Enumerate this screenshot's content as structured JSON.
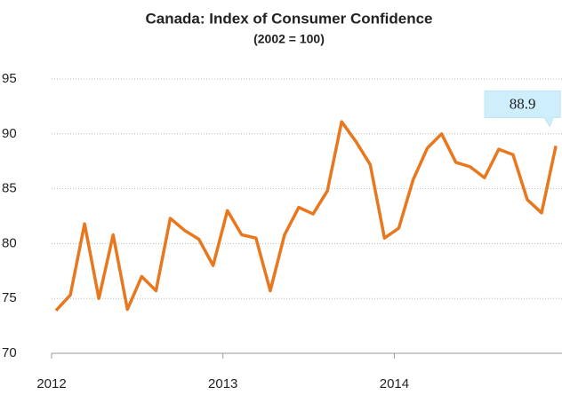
{
  "chart_data": {
    "type": "line",
    "title": "Canada: Index of Consumer Confidence",
    "subtitle": "(2002 = 100)",
    "categories": [
      "2012",
      null,
      null,
      null,
      null,
      null,
      null,
      null,
      null,
      null,
      null,
      null,
      "2013",
      null,
      null,
      null,
      null,
      null,
      null,
      null,
      null,
      null,
      null,
      null,
      "2014",
      null,
      null,
      null,
      null,
      null,
      null,
      null,
      null,
      null,
      null,
      null
    ],
    "series": [
      {
        "name": "Index of Consumer Confidence",
        "color": "#e8771e",
        "values": [
          73.9,
          75.3,
          81.8,
          75.0,
          80.8,
          74.0,
          77.0,
          75.7,
          82.3,
          81.2,
          80.4,
          78.0,
          83.0,
          80.8,
          80.5,
          75.7,
          80.8,
          83.3,
          82.7,
          84.8,
          91.1,
          89.3,
          87.2,
          80.5,
          81.4,
          85.8,
          88.7,
          90.0,
          87.4,
          87.0,
          86.0,
          88.6,
          88.1,
          84.0,
          82.8,
          88.9
        ],
        "value_labels": [
          null,
          null,
          null,
          null,
          null,
          null,
          null,
          null,
          null,
          null,
          null,
          null,
          null,
          null,
          null,
          null,
          null,
          null,
          null,
          null,
          null,
          null,
          null,
          null,
          null,
          null,
          null,
          null,
          null,
          null,
          null,
          null,
          null,
          null,
          null,
          "88.9"
        ]
      }
    ],
    "ylim": [
      70,
      95
    ],
    "yticks": [
      70,
      75,
      80,
      85,
      90,
      95
    ],
    "grid": true
  }
}
